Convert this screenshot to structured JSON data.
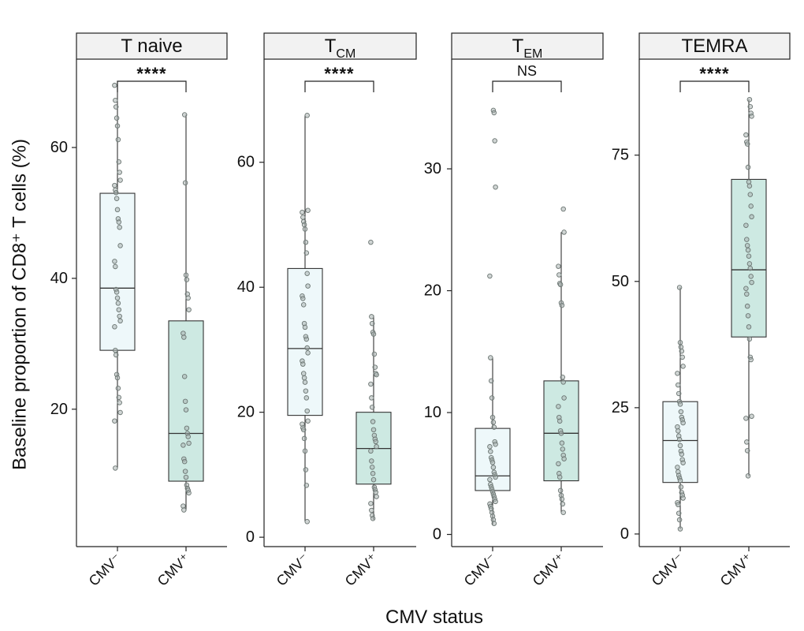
{
  "colors": {
    "neg_fill": "#eef8fa",
    "pos_fill": "#cde9e2",
    "box_stroke": "#333333",
    "point_fill": "#a9b3b0",
    "strip_fill": "#f2f2f2"
  },
  "chart_data": {
    "type": "box",
    "ylabel": "Baseline proportion of CD8⁺ T cells (%)",
    "xlabel": "CMV status",
    "categories": [
      "CMV⁻",
      "CMV⁺"
    ],
    "panels": [
      {
        "title": "T naive",
        "title_main": "T naive",
        "title_sub": "",
        "ylim": [
          -1,
          73.5
        ],
        "yticks": [
          20,
          40,
          60
        ],
        "significance": "****",
        "groups": [
          {
            "category": "CMV⁻",
            "min": 11,
            "q1": 29,
            "median": 38.5,
            "q3": 53,
            "max": 69.5,
            "points": [
              69.5,
              67.2,
              66.2,
              64.5,
              63.3,
              61.2,
              57.8,
              56.2,
              55,
              54.2,
              53.5,
              53.1,
              52.2,
              50.5,
              49.1,
              48.6,
              47.8,
              45,
              42.6,
              41.8,
              38.3,
              37.9,
              37,
              36.2,
              35.2,
              34.2,
              33.5,
              32.6,
              29,
              28.3,
              25.3,
              24.8,
              23.2,
              21.8,
              21,
              19.5,
              18.2,
              11
            ]
          },
          {
            "category": "CMV⁺",
            "min": 4.5,
            "q1": 9,
            "median": 16.3,
            "q3": 33.5,
            "max": 65,
            "points": [
              65,
              54.6,
              40.5,
              39.8,
              37.6,
              37,
              35.2,
              31.6,
              31,
              25,
              21.2,
              19.9,
              17.1,
              16.3,
              15.8,
              14.8,
              14.5,
              12.4,
              12,
              10.5,
              9.6,
              8.4,
              7.9,
              7.6,
              7.2,
              5.2,
              4.6
            ]
          }
        ]
      },
      {
        "title": "TCM",
        "title_main": "T",
        "title_sub": "CM",
        "ylim": [
          -1.5,
          76.5
        ],
        "yticks": [
          0,
          20,
          40,
          60
        ],
        "significance": "****",
        "groups": [
          {
            "category": "CMV⁻",
            "min": 2.5,
            "q1": 19.5,
            "median": 30.2,
            "q3": 43,
            "max": 67.5,
            "points": [
              67.5,
              52.3,
              52,
              51.2,
              50.5,
              50,
              49.3,
              47.2,
              45.5,
              42.2,
              40.2,
              38.6,
              38.2,
              37.2,
              34.2,
              33.6,
              32.1,
              31.7,
              30.3,
              29.5,
              28.2,
              27.7,
              26.2,
              25.5,
              24.8,
              23.4,
              22.3,
              20.2,
              18.6,
              18.1,
              17.5,
              17.2,
              15.8,
              13.8,
              10.8,
              8.3,
              2.5
            ]
          },
          {
            "category": "CMV⁺",
            "min": 2.8,
            "q1": 8.5,
            "median": 14.2,
            "q3": 20,
            "max": 35.5,
            "points": [
              47.2,
              35.3,
              34.2,
              32.8,
              32.5,
              29.3,
              27.2,
              26.2,
              26,
              24.5,
              22.3,
              20.8,
              18.5,
              17.2,
              16.3,
              15.7,
              15.3,
              14.5,
              13.8,
              12.2,
              11.2,
              10.2,
              9.2,
              8,
              7.6,
              7.2,
              6.5,
              5.4,
              4.3,
              3.5,
              3
            ]
          }
        ]
      },
      {
        "title": "TEM",
        "title_main": "T",
        "title_sub": "EM",
        "ylim": [
          -1,
          39
        ],
        "yticks": [
          0,
          10,
          20,
          30
        ],
        "significance": "NS",
        "groups": [
          {
            "category": "CMV⁻",
            "min": 0.8,
            "q1": 3.6,
            "median": 4.8,
            "q3": 8.7,
            "max": 14.5,
            "points": [
              34.8,
              34.6,
              32.3,
              28.5,
              21.2,
              14.5,
              12.6,
              11.2,
              9.6,
              9.2,
              8.8,
              7.6,
              7.4,
              7.2,
              6.8,
              6.3,
              6.1,
              5.9,
              5.5,
              5.1,
              4.9,
              4.7,
              4.5,
              4.1,
              3.9,
              3.7,
              3.5,
              3.3,
              3.1,
              2.9,
              2.7,
              2.5,
              2.3,
              2.1,
              1.8,
              1.5,
              1.2,
              0.9
            ]
          },
          {
            "category": "CMV⁺",
            "min": 1.8,
            "q1": 4.4,
            "median": 8.3,
            "q3": 12.6,
            "max": 24.8,
            "points": [
              26.7,
              24.8,
              22,
              21.3,
              20.6,
              20.5,
              19,
              18.8,
              12.9,
              12.5,
              11.2,
              10.5,
              9.6,
              9.3,
              8.5,
              8.3,
              7.5,
              7,
              6.5,
              6.2,
              5.8,
              5,
              4.7,
              3.6,
              3.2,
              2.9,
              2.5,
              1.8
            ]
          }
        ]
      },
      {
        "title": "TEMRA",
        "title_main": "TEMRA",
        "title_sub": "",
        "ylim": [
          -2.5,
          94
        ],
        "yticks": [
          0,
          25,
          50,
          75
        ],
        "significance": "****",
        "groups": [
          {
            "category": "CMV⁻",
            "min": 1,
            "q1": 10.2,
            "median": 18.5,
            "q3": 26.2,
            "max": 48.8,
            "points": [
              48.8,
              37.9,
              37,
              36.2,
              35,
              33.2,
              31.8,
              29.5,
              27.8,
              26.2,
              25.7,
              24.2,
              23.1,
              22.6,
              22,
              21.2,
              20.4,
              19.4,
              18.7,
              17.5,
              16.4,
              15.8,
              14.7,
              14.1,
              13.2,
              12.3,
              11.6,
              11.1,
              10.6,
              9.3,
              8.2,
              7.7,
              7.1,
              6.2,
              5.8,
              4.1,
              2.8,
              1
            ]
          },
          {
            "category": "CMV⁺",
            "min": 11.5,
            "q1": 39,
            "median": 52.3,
            "q3": 70.2,
            "max": 86,
            "points": [
              86,
              84.6,
              83.3,
              82.7,
              79,
              77.6,
              77.2,
              72.6,
              69.7,
              68.9,
              67.2,
              64.9,
              62.8,
              61.1,
              58.3,
              57.1,
              56.2,
              55,
              53.5,
              52.6,
              51,
              49.8,
              48.6,
              47.5,
              45.1,
              43.2,
              41,
              38.6,
              35,
              34.5,
              23.3,
              22.9,
              18.2,
              16.5,
              11.5
            ]
          }
        ]
      }
    ]
  }
}
